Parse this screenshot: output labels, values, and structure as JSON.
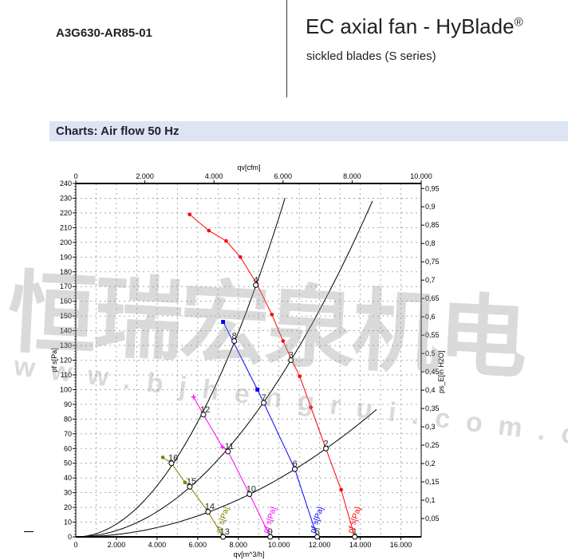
{
  "header": {
    "model": "A3G630-AR85-01",
    "title": "EC axial fan - HyBlade",
    "title_mark": "®",
    "subtitle": "sickled blades (S series)"
  },
  "section": {
    "title": "Charts: Air flow 50 Hz"
  },
  "watermark": {
    "cn": "恒瑞宏泉机电",
    "url": "www.bjhengrui.com.cn"
  },
  "chart_data": {
    "type": "line",
    "xlabel": "qv[m^3/h]",
    "x2label": "qv[cfm]",
    "ylabel": "pf s[Pa]",
    "y2label": "ps_E[in H2O]",
    "xlim": [
      0,
      17000
    ],
    "ylim": [
      0,
      240
    ],
    "x2lim": [
      0,
      10000
    ],
    "y2lim": [
      0,
      0.9636
    ],
    "x_ticks": [
      "2.000",
      "4.000",
      "6.000",
      "8.000",
      "10.000",
      "12.000",
      "14.000",
      "16.000"
    ],
    "x_tick_values": [
      2000,
      4000,
      6000,
      8000,
      10000,
      12000,
      14000,
      16000
    ],
    "x2_ticks": [
      "0",
      "2.000",
      "4.000",
      "6.000",
      "8.000",
      "10.000"
    ],
    "x2_tick_values": [
      0,
      2000,
      4000,
      6000,
      8000,
      10000
    ],
    "y_ticks": [
      0,
      10,
      20,
      30,
      40,
      50,
      60,
      70,
      80,
      90,
      100,
      110,
      120,
      130,
      140,
      150,
      160,
      170,
      180,
      190,
      200,
      210,
      220,
      230,
      240
    ],
    "y2_ticks": [
      "0,05",
      "0,1",
      "0,15",
      "0,2",
      "0,25",
      "0,3",
      "0,35",
      "0,4",
      "0,45",
      "0,5",
      "0,55",
      "0,6",
      "0,65",
      "0,7",
      "0,75",
      "0,8",
      "0,85",
      "0,9",
      "0,95"
    ],
    "y2_tick_values": [
      0.05,
      0.1,
      0.15,
      0.2,
      0.25,
      0.3,
      0.35,
      0.4,
      0.45,
      0.5,
      0.55,
      0.6,
      0.65,
      0.7,
      0.75,
      0.8,
      0.85,
      0.9,
      0.95
    ],
    "grid": true,
    "series": [
      {
        "label": "pf s[Pa]",
        "color": "#ff0000",
        "marker": "dot",
        "x": [
          5600,
          6550,
          7400,
          8100,
          8900,
          9650,
          10200,
          10630,
          11020,
          11570,
          12310,
          13060,
          13730
        ],
        "y": [
          219,
          208,
          201,
          190,
          172,
          151,
          133,
          120,
          109,
          88,
          60,
          32,
          0
        ]
      },
      {
        "label": "pf s[Pa]",
        "color": "#0000ff",
        "marker": "square",
        "x": [
          7250,
          8940,
          9250,
          10780,
          11880
        ],
        "y": [
          146,
          100,
          91,
          46,
          0
        ]
      },
      {
        "label": "pf s[Pa]",
        "color": "#ff00ff",
        "marker": "plus",
        "x": [
          5800,
          6280,
          7220,
          7490,
          8550,
          9570
        ],
        "y": [
          95,
          83,
          61,
          58,
          29,
          0
        ]
      },
      {
        "label": "pf s[Pa]",
        "color": "#808000",
        "marker": "dot",
        "x": [
          4280,
          4710,
          5370,
          5610,
          6510,
          7250
        ],
        "y": [
          54,
          50,
          37,
          34,
          17,
          0
        ]
      }
    ],
    "system_curves": [
      {
        "color": "#000000",
        "k": 2.17e-06,
        "x_max": 10300
      },
      {
        "color": "#000000",
        "k": 1.07e-06,
        "x_max": 14600
      },
      {
        "color": "#000000",
        "k": 3.95e-07,
        "x_max": 14800
      }
    ],
    "operating_points": [
      {
        "label": "1",
        "x": 13730,
        "y": 0
      },
      {
        "label": "2",
        "x": 12310,
        "y": 60
      },
      {
        "label": "3",
        "x": 10590,
        "y": 120
      },
      {
        "label": "4",
        "x": 8860,
        "y": 171
      },
      {
        "label": "5",
        "x": 11880,
        "y": 0
      },
      {
        "label": "6",
        "x": 10780,
        "y": 46
      },
      {
        "label": "7",
        "x": 9250,
        "y": 91
      },
      {
        "label": "8",
        "x": 7800,
        "y": 133
      },
      {
        "label": "9",
        "x": 9570,
        "y": 0
      },
      {
        "label": "10",
        "x": 8550,
        "y": 29
      },
      {
        "label": "11",
        "x": 7490,
        "y": 58
      },
      {
        "label": "12",
        "x": 6280,
        "y": 83
      },
      {
        "label": "13",
        "x": 7250,
        "y": 0
      },
      {
        "label": "14",
        "x": 6510,
        "y": 17
      },
      {
        "label": "15",
        "x": 5610,
        "y": 34
      },
      {
        "label": "16",
        "x": 4710,
        "y": 50
      }
    ]
  }
}
